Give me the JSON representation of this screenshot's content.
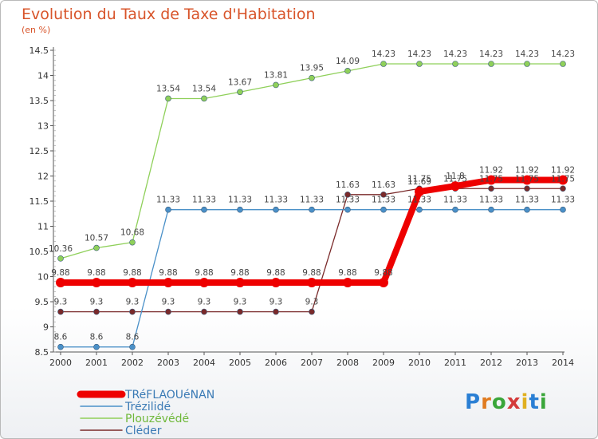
{
  "title": "Evolution du Taux de Taxe d'Habitation",
  "subtitle": "(en %)",
  "logo": {
    "letters": [
      "P",
      "r",
      "o",
      "x",
      "i",
      "t",
      "i"
    ],
    "colors": [
      "#2a7fd4",
      "#e07b20",
      "#3aa63a",
      "#d43a3a",
      "#e0b020",
      "#2a7fd4",
      "#3aa63a"
    ]
  },
  "chart_data": {
    "type": "line",
    "x": [
      2000,
      2001,
      2002,
      2003,
      2004,
      2005,
      2006,
      2007,
      2008,
      2009,
      2010,
      2011,
      2012,
      2013,
      2014
    ],
    "ylim": [
      8.5,
      14.5
    ],
    "yticks": [
      8.5,
      9,
      9.5,
      10,
      10.5,
      11,
      11.5,
      12,
      12.5,
      13,
      13.5,
      14,
      14.5
    ],
    "grid": false,
    "legend_position": "bottom-left",
    "series": [
      {
        "name": "Cléder",
        "color": "#7a2a2a",
        "width": 1.3,
        "marker": 3.5,
        "values": [
          9.3,
          9.3,
          9.3,
          9.3,
          9.3,
          9.3,
          9.3,
          9.3,
          11.63,
          11.63,
          11.75,
          11.75,
          11.75,
          11.75,
          11.75
        ],
        "labels": [
          "9.3",
          "9.3",
          "9.3",
          "9.3",
          "9.3",
          "9.3",
          "9.3",
          "9.3",
          "11.63",
          "11.63",
          "11.75",
          "11.75",
          "11.75",
          "11.75",
          "11.75"
        ]
      },
      {
        "name": "Trézilidé",
        "color": "#4a90c8",
        "width": 1.3,
        "marker": 3.5,
        "values": [
          8.6,
          8.6,
          8.6,
          11.33,
          11.33,
          11.33,
          11.33,
          11.33,
          11.33,
          11.33,
          11.33,
          11.33,
          11.33,
          11.33,
          11.33
        ],
        "labels": [
          "8.6",
          "8.6",
          "8.6",
          "11.33",
          "11.33",
          "11.33",
          "11.33",
          "11.33",
          "11.33",
          "11.33",
          "11.33",
          "11.33",
          "11.33",
          "11.33",
          "11.33"
        ]
      },
      {
        "name": "Plouzévédé",
        "color": "#8fd05a",
        "width": 1.3,
        "marker": 3.5,
        "values": [
          10.36,
          10.57,
          10.68,
          13.54,
          13.54,
          13.67,
          13.81,
          13.95,
          14.09,
          14.23,
          14.23,
          14.23,
          14.23,
          14.23,
          14.23
        ],
        "labels": [
          "10.36",
          "10.57",
          "10.68",
          "13.54",
          "13.54",
          "13.67",
          "13.81",
          "13.95",
          "14.09",
          "14.23",
          "14.23",
          "14.23",
          "14.23",
          "14.23",
          "14.23"
        ]
      },
      {
        "name": "TRéFLAOUéNAN",
        "color": "#ee0000",
        "width": 8,
        "marker": 6,
        "values": [
          9.88,
          9.88,
          9.88,
          9.88,
          9.88,
          9.88,
          9.88,
          9.88,
          9.88,
          9.88,
          11.69,
          11.8,
          11.92,
          11.92,
          11.92
        ],
        "labels": [
          "9.88",
          "9.88",
          "9.88",
          "9.88",
          "9.88",
          "9.88",
          "9.88",
          "9.88",
          "9.88",
          "9.88",
          "11.69",
          "11.8",
          "11.92",
          "11.92",
          "11.92"
        ]
      }
    ],
    "legend": [
      "TRéFLAOUéNAN",
      "Trézilidé",
      "Plouzévédé",
      "Cléder"
    ]
  }
}
